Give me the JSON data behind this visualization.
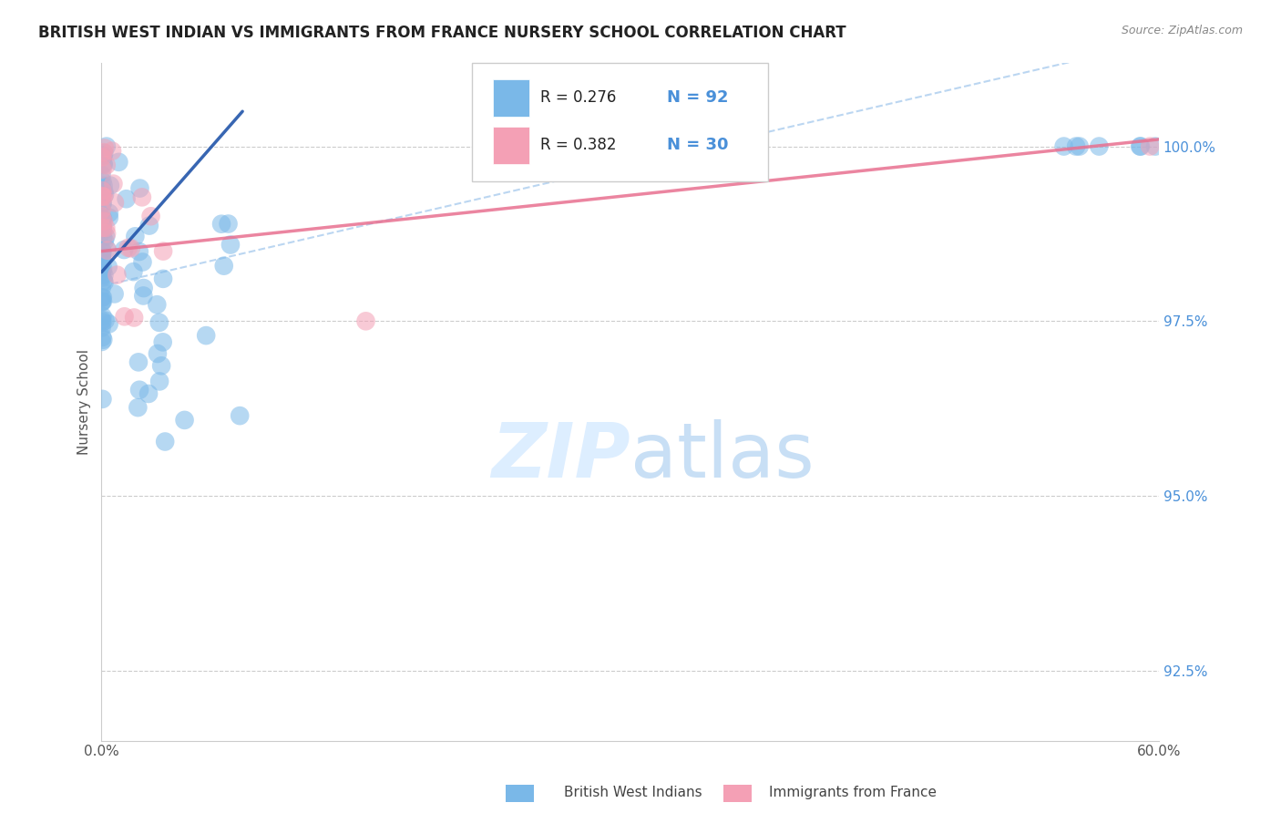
{
  "title": "BRITISH WEST INDIAN VS IMMIGRANTS FROM FRANCE NURSERY SCHOOL CORRELATION CHART",
  "source_text": "Source: ZipAtlas.com",
  "ylabel": "Nursery School",
  "xlim": [
    0.0,
    60.0
  ],
  "ylim": [
    91.5,
    101.2
  ],
  "xticks": [
    0.0,
    10.0,
    20.0,
    30.0,
    40.0,
    50.0,
    60.0
  ],
  "xticklabels": [
    "0.0%",
    "",
    "",
    "",
    "",
    "",
    "60.0%"
  ],
  "yticks": [
    92.5,
    95.0,
    97.5,
    100.0
  ],
  "yticklabels": [
    "92.5%",
    "95.0%",
    "97.5%",
    "100.0%"
  ],
  "legend_r1": "R = 0.276",
  "legend_n1": "N = 92",
  "legend_r2": "R = 0.382",
  "legend_n2": "N = 30",
  "blue_color": "#7ab8e8",
  "pink_color": "#f4a0b5",
  "blue_line_color": "#2255aa",
  "pink_line_color": "#e87090",
  "dash_line_color": "#aaccee",
  "background_color": "#ffffff",
  "grid_color": "#cccccc",
  "watermark_color": "#ddeeff",
  "title_color": "#222222",
  "ylabel_color": "#555555",
  "ytick_color": "#4a90d9",
  "xtick_color": "#555555",
  "source_color": "#888888",
  "legend_text_color": "#222222",
  "legend_n_color": "#4a90d9"
}
